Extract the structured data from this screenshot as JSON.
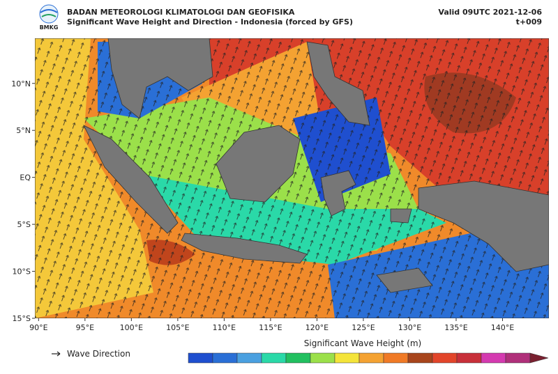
{
  "header": {
    "logo_text": "BMKG",
    "agency": "BADAN METEOROLOGI KLIMATOLOGI DAN GEOFISIKA",
    "title": "Significant Wave Height and Direction - Indonesia (forced by GFS)",
    "valid": "Valid 09UTC 2021-12-06",
    "lead": "t+009"
  },
  "map": {
    "xlim": [
      89.6,
      145
    ],
    "ylim": [
      -15,
      14.8
    ],
    "xticks": [
      {
        "value": 90,
        "label": "90°E"
      },
      {
        "value": 95,
        "label": "95°E"
      },
      {
        "value": 100,
        "label": "100°E"
      },
      {
        "value": 105,
        "label": "105°E"
      },
      {
        "value": 110,
        "label": "110°E"
      },
      {
        "value": 115,
        "label": "115°E"
      },
      {
        "value": 120,
        "label": "120°E"
      },
      {
        "value": 125,
        "label": "125°E"
      },
      {
        "value": 130,
        "label": "130°E"
      },
      {
        "value": 135,
        "label": "135°E"
      },
      {
        "value": 140,
        "label": "140°E"
      }
    ],
    "yticks": [
      {
        "value": 10,
        "label": "10°N"
      },
      {
        "value": 5,
        "label": "5°N"
      },
      {
        "value": 0,
        "label": "EQ"
      },
      {
        "value": -5,
        "label": "5°S"
      },
      {
        "value": -10,
        "label": "10°S"
      },
      {
        "value": -15,
        "label": "15°S"
      }
    ]
  },
  "legend": {
    "arrow_label": "Wave Direction",
    "colorbar_title": "Significant Wave Height (m)"
  }
}
